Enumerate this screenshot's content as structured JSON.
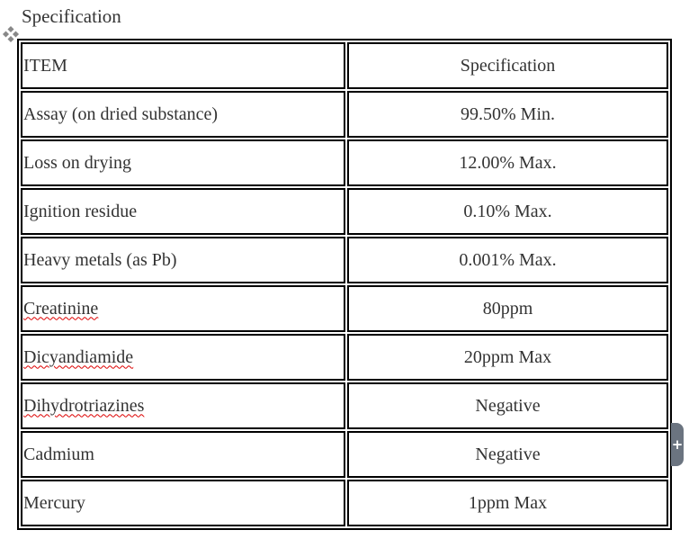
{
  "title": "Specification",
  "headers": {
    "item": "ITEM",
    "spec": "Specification"
  },
  "rows": [
    {
      "item": "Assay (on dried substance)",
      "spec": "99.50% Min.",
      "spell": false
    },
    {
      "item": "Loss on drying",
      "spec": "12.00% Max.",
      "spell": false
    },
    {
      "item": "Ignition residue",
      "spec": "0.10% Max.",
      "spell": false
    },
    {
      "item": "Heavy metals (as Pb)",
      "spec": "0.001% Max.",
      "spell": false
    },
    {
      "item": "Creatinine",
      "spec": "80ppm",
      "spell": true
    },
    {
      "item": "Dicyandiamide",
      "spec": "20ppm Max",
      "spell": true
    },
    {
      "item": "Dihydrotriazines",
      "spec": "Negative",
      "spell": true
    },
    {
      "item": "Cadmium",
      "spec": "Negative",
      "spell": false
    },
    {
      "item": "Mercury",
      "spec": "1ppm Max",
      "spell": false
    }
  ],
  "icons": {
    "move": "move-handle-icon",
    "add": "plus-icon"
  },
  "add_label": "+"
}
